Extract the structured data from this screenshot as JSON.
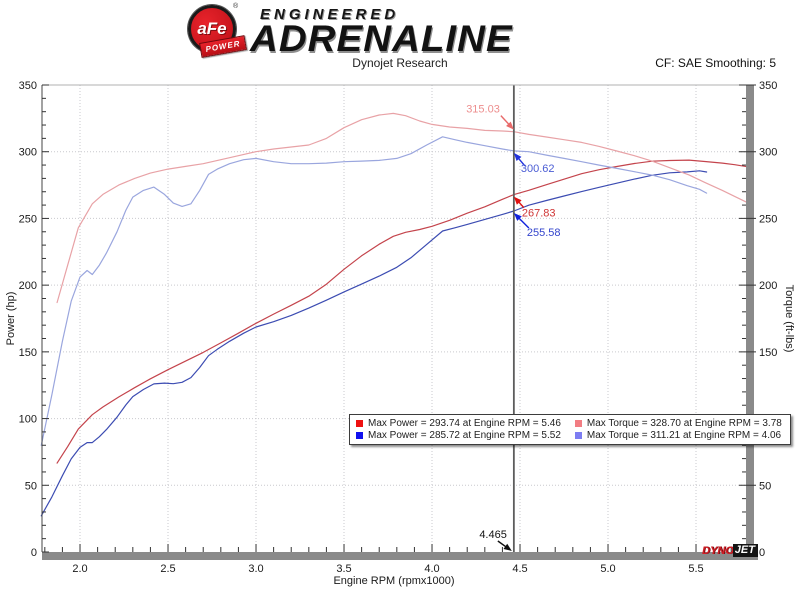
{
  "header": {
    "logo_primary": "aFe",
    "logo_secondary": "POWER",
    "logo_reg": "®",
    "brand_line1": "ENGINEERED",
    "brand_line2": "ADRENALINE",
    "subtitle": "Dynojet Research",
    "correction_label": "CF: SAE Smoothing: 5"
  },
  "watermark": {
    "part1": "DYNO",
    "part2": "JET"
  },
  "chart_data": {
    "type": "line",
    "title": "Dynojet Research",
    "xlabel": "Engine RPM (rpmx1000)",
    "ylabel_left": "Power (hp)",
    "ylabel_right": "Torque (ft-lbs)",
    "x_range": [
      1.784,
      5.784
    ],
    "y_range": [
      0,
      350
    ],
    "x_major_ticks": [
      2.0,
      2.5,
      3.0,
      3.5,
      4.0,
      4.5,
      5.0,
      5.5
    ],
    "x_minor_step": 0.1,
    "y_major_step": 50,
    "y_minor_step": 10,
    "grid": "dotted",
    "legend_position": "inside-bottom-center",
    "series": [
      {
        "name": "max-power-run-red",
        "unit": "hp",
        "color": "#c4444c",
        "points": [
          [
            1.87,
            66.6
          ],
          [
            1.93,
            79.0
          ],
          [
            1.99,
            92.1
          ],
          [
            2.07,
            102.9
          ],
          [
            2.13,
            108.7
          ],
          [
            2.22,
            116.2
          ],
          [
            2.31,
            123.1
          ],
          [
            2.4,
            129.8
          ],
          [
            2.5,
            136.6
          ],
          [
            2.6,
            143.1
          ],
          [
            2.7,
            149.6
          ],
          [
            2.8,
            156.7
          ],
          [
            2.9,
            164.0
          ],
          [
            3.0,
            171.4
          ],
          [
            3.1,
            178.3
          ],
          [
            3.2,
            184.9
          ],
          [
            3.3,
            191.7
          ],
          [
            3.4,
            200.7
          ],
          [
            3.5,
            211.9
          ],
          [
            3.6,
            222.0
          ],
          [
            3.7,
            230.7
          ],
          [
            3.78,
            236.6
          ],
          [
            3.85,
            239.6
          ],
          [
            3.93,
            241.7
          ],
          [
            4.0,
            244.1
          ],
          [
            4.1,
            248.6
          ],
          [
            4.2,
            253.9
          ],
          [
            4.3,
            258.7
          ],
          [
            4.4,
            264.3
          ],
          [
            4.465,
            267.83
          ],
          [
            4.55,
            271.1
          ],
          [
            4.65,
            275.3
          ],
          [
            4.75,
            279.4
          ],
          [
            4.85,
            283.5
          ],
          [
            4.95,
            286.5
          ],
          [
            5.05,
            288.9
          ],
          [
            5.15,
            291.2
          ],
          [
            5.25,
            292.9
          ],
          [
            5.35,
            293.4
          ],
          [
            5.46,
            293.74
          ],
          [
            5.55,
            292.7
          ],
          [
            5.65,
            291.5
          ],
          [
            5.72,
            290.3
          ],
          [
            5.79,
            288.8
          ]
        ]
      },
      {
        "name": "max-power-run-blue",
        "unit": "hp",
        "color": "#3c4cb2",
        "points": [
          [
            1.78,
            27.1
          ],
          [
            1.84,
            41.3
          ],
          [
            1.9,
            57.2
          ],
          [
            1.95,
            69.8
          ],
          [
            2.0,
            78.4
          ],
          [
            2.04,
            82.0
          ],
          [
            2.07,
            82.0
          ],
          [
            2.11,
            86.4
          ],
          [
            2.15,
            91.7
          ],
          [
            2.21,
            101.0
          ],
          [
            2.26,
            110.2
          ],
          [
            2.3,
            116.5
          ],
          [
            2.36,
            121.8
          ],
          [
            2.42,
            126.0
          ],
          [
            2.48,
            126.6
          ],
          [
            2.53,
            126.1
          ],
          [
            2.58,
            127.2
          ],
          [
            2.63,
            130.7
          ],
          [
            2.68,
            138.3
          ],
          [
            2.73,
            147.1
          ],
          [
            2.78,
            151.9
          ],
          [
            2.85,
            157.9
          ],
          [
            2.93,
            164.0
          ],
          [
            3.0,
            168.6
          ],
          [
            3.1,
            172.6
          ],
          [
            3.2,
            177.3
          ],
          [
            3.3,
            182.8
          ],
          [
            3.4,
            188.7
          ],
          [
            3.5,
            194.9
          ],
          [
            3.6,
            200.8
          ],
          [
            3.7,
            206.8
          ],
          [
            3.8,
            213.4
          ],
          [
            3.88,
            220.5
          ],
          [
            3.97,
            230.5
          ],
          [
            4.06,
            240.6
          ],
          [
            4.13,
            243.0
          ],
          [
            4.2,
            245.5
          ],
          [
            4.3,
            249.3
          ],
          [
            4.4,
            253.0
          ],
          [
            4.465,
            255.58
          ],
          [
            4.55,
            259.9
          ],
          [
            4.65,
            263.4
          ],
          [
            4.75,
            266.8
          ],
          [
            4.85,
            270.1
          ],
          [
            4.95,
            273.3
          ],
          [
            5.05,
            276.4
          ],
          [
            5.15,
            279.5
          ],
          [
            5.25,
            282.3
          ],
          [
            5.35,
            284.2
          ],
          [
            5.45,
            284.9
          ],
          [
            5.52,
            285.72
          ],
          [
            5.56,
            284.8
          ]
        ]
      },
      {
        "name": "max-torque-run-red",
        "unit": "ft-lbs",
        "color": "#e8a2a6",
        "points": [
          [
            1.87,
            187
          ],
          [
            1.93,
            215
          ],
          [
            1.99,
            243
          ],
          [
            2.07,
            261
          ],
          [
            2.13,
            268
          ],
          [
            2.22,
            275
          ],
          [
            2.31,
            280
          ],
          [
            2.4,
            284
          ],
          [
            2.5,
            287
          ],
          [
            2.6,
            289
          ],
          [
            2.7,
            291
          ],
          [
            2.8,
            294
          ],
          [
            2.9,
            297
          ],
          [
            3.0,
            300
          ],
          [
            3.1,
            302
          ],
          [
            3.2,
            303.5
          ],
          [
            3.3,
            305
          ],
          [
            3.4,
            310
          ],
          [
            3.5,
            318
          ],
          [
            3.6,
            324
          ],
          [
            3.7,
            327.5
          ],
          [
            3.78,
            328.7
          ],
          [
            3.85,
            327
          ],
          [
            3.93,
            323
          ],
          [
            4.0,
            320.5
          ],
          [
            4.1,
            318.5
          ],
          [
            4.2,
            317.5
          ],
          [
            4.3,
            316
          ],
          [
            4.4,
            315.5
          ],
          [
            4.465,
            315.03
          ],
          [
            4.55,
            313
          ],
          [
            4.65,
            311
          ],
          [
            4.75,
            309
          ],
          [
            4.85,
            307
          ],
          [
            4.95,
            304
          ],
          [
            5.05,
            300.5
          ],
          [
            5.15,
            297
          ],
          [
            5.25,
            293
          ],
          [
            5.35,
            288
          ],
          [
            5.46,
            282.6
          ],
          [
            5.55,
            277
          ],
          [
            5.65,
            271
          ],
          [
            5.72,
            266.5
          ],
          [
            5.79,
            262
          ]
        ]
      },
      {
        "name": "max-torque-run-blue",
        "unit": "ft-lbs",
        "color": "#9aa6de",
        "points": [
          [
            1.78,
            80
          ],
          [
            1.84,
            118
          ],
          [
            1.9,
            158
          ],
          [
            1.95,
            188
          ],
          [
            2.0,
            206
          ],
          [
            2.04,
            211
          ],
          [
            2.07,
            208
          ],
          [
            2.11,
            215
          ],
          [
            2.15,
            224
          ],
          [
            2.21,
            240
          ],
          [
            2.26,
            256
          ],
          [
            2.3,
            266
          ],
          [
            2.36,
            271
          ],
          [
            2.42,
            273.5
          ],
          [
            2.48,
            268
          ],
          [
            2.53,
            261.5
          ],
          [
            2.58,
            259
          ],
          [
            2.63,
            261
          ],
          [
            2.68,
            271
          ],
          [
            2.73,
            283
          ],
          [
            2.78,
            287
          ],
          [
            2.85,
            291
          ],
          [
            2.93,
            294
          ],
          [
            3.0,
            295
          ],
          [
            3.1,
            292.5
          ],
          [
            3.2,
            291
          ],
          [
            3.3,
            291
          ],
          [
            3.4,
            291.5
          ],
          [
            3.5,
            292.5
          ],
          [
            3.6,
            293
          ],
          [
            3.7,
            293.5
          ],
          [
            3.8,
            295
          ],
          [
            3.88,
            298.5
          ],
          [
            3.97,
            305
          ],
          [
            4.06,
            311.21
          ],
          [
            4.13,
            309
          ],
          [
            4.2,
            307
          ],
          [
            4.3,
            304.5
          ],
          [
            4.4,
            302
          ],
          [
            4.465,
            300.62
          ],
          [
            4.55,
            300
          ],
          [
            4.65,
            297.5
          ],
          [
            4.75,
            295
          ],
          [
            4.85,
            292.5
          ],
          [
            4.95,
            290
          ],
          [
            5.05,
            287.5
          ],
          [
            5.15,
            285
          ],
          [
            5.25,
            282.5
          ],
          [
            5.35,
            279
          ],
          [
            5.45,
            274.5
          ],
          [
            5.52,
            271.8
          ],
          [
            5.56,
            269
          ]
        ]
      }
    ],
    "legend": {
      "entries": [
        {
          "swatch": "#ee1111",
          "text": "Max Power = 293.74 at Engine RPM = 5.46"
        },
        {
          "swatch": "#1111ee",
          "text": "Max Power = 285.72 at Engine RPM = 5.52"
        },
        {
          "swatch": "#f27d83",
          "text": "Max Torque = 328.70 at Engine RPM = 3.78"
        },
        {
          "swatch": "#7d7df2",
          "text": "Max Torque = 311.21 at Engine RPM = 4.06"
        }
      ]
    },
    "cursor": {
      "rpm": 4.465,
      "rpm_label": "4.465",
      "readouts": [
        {
          "label": "315.03",
          "value": 315.03,
          "color": "#ed8e8e",
          "arrow": "#e86a6a"
        },
        {
          "label": "300.62",
          "value": 300.62,
          "color": "#4a5cd4",
          "arrow": "#2233dd"
        },
        {
          "label": "267.83",
          "value": 267.83,
          "color": "#cf3535",
          "arrow": "#e01111"
        },
        {
          "label": "255.58",
          "value": 255.58,
          "color": "#3344cc",
          "arrow": "#1122dd"
        }
      ]
    }
  }
}
